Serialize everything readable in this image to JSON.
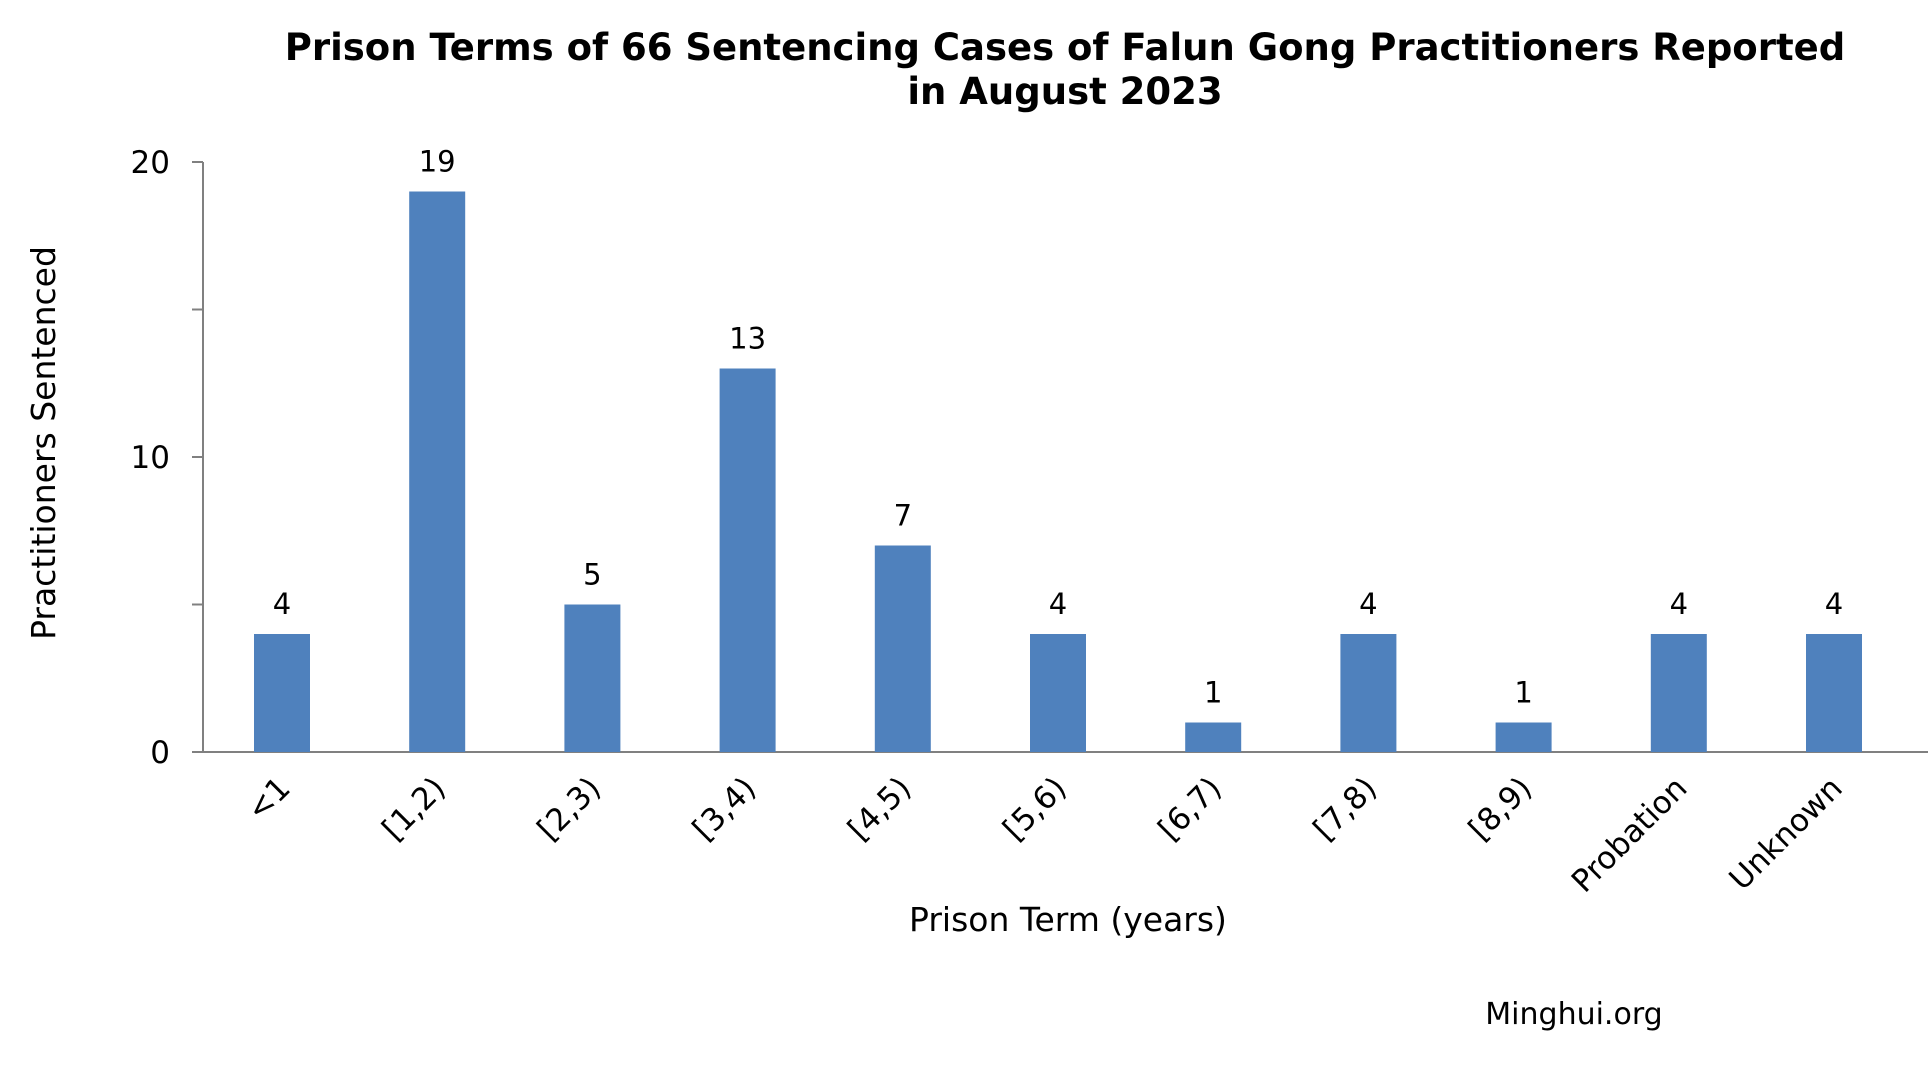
{
  "chart_data": {
    "type": "bar",
    "title_line1": "Prison Terms of 66 Sentencing Cases of Falun Gong Practitioners Reported",
    "title_line2": "in August 2023",
    "xlabel": "Prison Term (years)",
    "ylabel": "Practitioners Sentenced",
    "categories": [
      "<1",
      "[1,2)",
      "[2,3)",
      "[3,4)",
      "[4,5)",
      "[5,6)",
      "[6,7)",
      "[7,8)",
      "[8,9)",
      "Probation",
      "Unknown"
    ],
    "values": [
      4,
      19,
      5,
      13,
      7,
      4,
      1,
      4,
      1,
      4,
      4
    ],
    "ylim": [
      0,
      20
    ],
    "y_ticks": [
      "0",
      "10",
      "20"
    ],
    "data_labels": [
      "4",
      "19",
      "5",
      "13",
      "7",
      "4",
      "1",
      "4",
      "1",
      "4",
      "4"
    ],
    "grid": false,
    "legend": "none",
    "bar_color": "#4F81BD",
    "axis_color": "#808080"
  },
  "source": "Minghui.org"
}
